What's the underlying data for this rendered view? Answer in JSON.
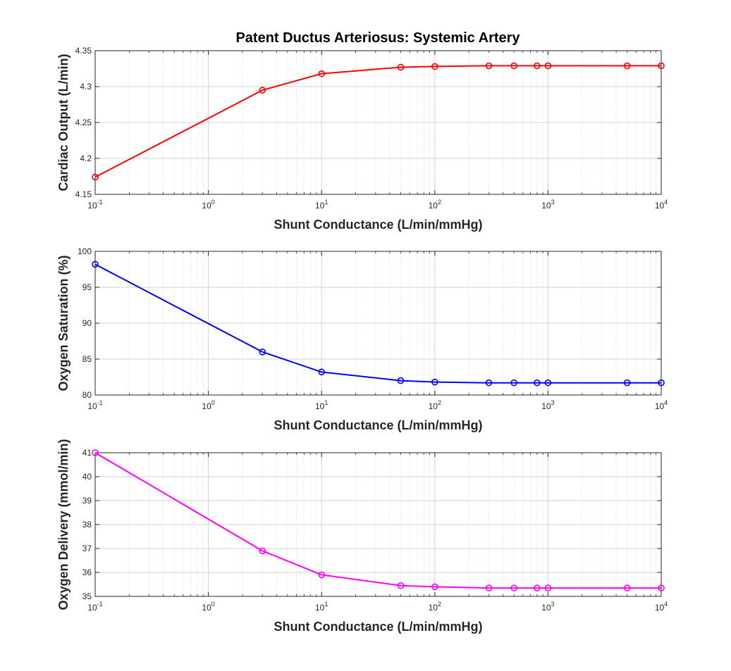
{
  "figure_title": "Patent Ductus Arteriosus: Systemic Artery",
  "chart_data": [
    {
      "type": "line",
      "title": "Patent Ductus Arteriosus: Systemic Artery",
      "xlabel": "Shunt Conductance (L/min/mmHg)",
      "ylabel": "Cardiac Output (L/min)",
      "xscale": "log",
      "xlim": [
        0.1,
        10000
      ],
      "ylim": [
        4.15,
        4.35
      ],
      "xticks": [
        0.1,
        1,
        10,
        100,
        1000,
        10000
      ],
      "xtick_labels": [
        {
          "base": "10",
          "exp": "-1"
        },
        {
          "base": "10",
          "exp": "0"
        },
        {
          "base": "10",
          "exp": "1"
        },
        {
          "base": "10",
          "exp": "2"
        },
        {
          "base": "10",
          "exp": "3"
        },
        {
          "base": "10",
          "exp": "4"
        }
      ],
      "yticks": [
        4.15,
        4.2,
        4.25,
        4.3,
        4.35
      ],
      "ytick_labels": [
        "4.15",
        "4.2",
        "4.25",
        "4.3",
        "4.35"
      ],
      "grid": true,
      "color": "#ff0000",
      "marker": "circle",
      "x": [
        0.1,
        3,
        10,
        50,
        100,
        300,
        500,
        800,
        1000,
        5000,
        10000
      ],
      "y": [
        4.174,
        4.295,
        4.318,
        4.327,
        4.328,
        4.329,
        4.329,
        4.329,
        4.329,
        4.329,
        4.329
      ]
    },
    {
      "type": "line",
      "title": "",
      "xlabel": "Shunt Conductance (L/min/mmHg)",
      "ylabel": "Oxygen Saturation (%)",
      "xscale": "log",
      "xlim": [
        0.1,
        10000
      ],
      "ylim": [
        80,
        100
      ],
      "xticks": [
        0.1,
        1,
        10,
        100,
        1000,
        10000
      ],
      "xtick_labels": [
        {
          "base": "10",
          "exp": "-1"
        },
        {
          "base": "10",
          "exp": "0"
        },
        {
          "base": "10",
          "exp": "1"
        },
        {
          "base": "10",
          "exp": "2"
        },
        {
          "base": "10",
          "exp": "3"
        },
        {
          "base": "10",
          "exp": "4"
        }
      ],
      "yticks": [
        80,
        85,
        90,
        95,
        100
      ],
      "ytick_labels": [
        "80",
        "85",
        "90",
        "95",
        "100"
      ],
      "grid": true,
      "color": "#0000ff",
      "marker": "circle",
      "x": [
        0.1,
        3,
        10,
        50,
        100,
        300,
        500,
        800,
        1000,
        5000,
        10000
      ],
      "y": [
        98.2,
        86.0,
        83.2,
        82.0,
        81.8,
        81.7,
        81.7,
        81.7,
        81.7,
        81.7,
        81.7
      ]
    },
    {
      "type": "line",
      "title": "",
      "xlabel": "Shunt Conductance (L/min/mmHg)",
      "ylabel": "Oxygen Delivery (mmol/min)",
      "xscale": "log",
      "xlim": [
        0.1,
        10000
      ],
      "ylim": [
        35,
        41
      ],
      "xticks": [
        0.1,
        1,
        10,
        100,
        1000,
        10000
      ],
      "xtick_labels": [
        {
          "base": "10",
          "exp": "-1"
        },
        {
          "base": "10",
          "exp": "0"
        },
        {
          "base": "10",
          "exp": "1"
        },
        {
          "base": "10",
          "exp": "2"
        },
        {
          "base": "10",
          "exp": "3"
        },
        {
          "base": "10",
          "exp": "4"
        }
      ],
      "yticks": [
        35,
        36,
        37,
        38,
        39,
        40,
        41
      ],
      "ytick_labels": [
        "35",
        "36",
        "37",
        "38",
        "39",
        "40",
        "41"
      ],
      "grid": true,
      "color": "#ff00ff",
      "marker": "circle",
      "x": [
        0.1,
        3,
        10,
        50,
        100,
        300,
        500,
        800,
        1000,
        5000,
        10000
      ],
      "y": [
        41.0,
        36.9,
        35.9,
        35.45,
        35.4,
        35.35,
        35.35,
        35.35,
        35.35,
        35.35,
        35.35
      ]
    }
  ]
}
